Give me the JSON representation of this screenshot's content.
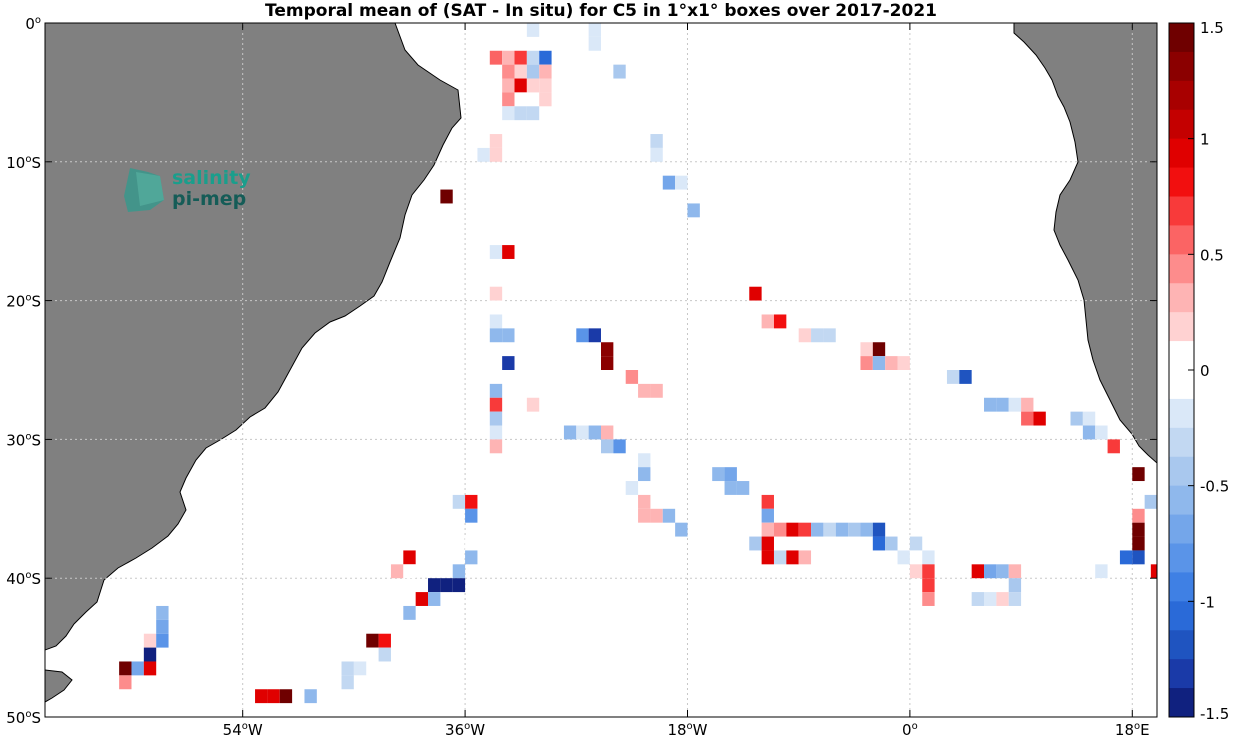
{
  "title": "Temporal mean of (SAT - In situ) for C5 in 1°x1° boxes over 2017-2021",
  "logo": {
    "line1": "salinity",
    "line2": "pi-mep"
  },
  "colors": {
    "land": "#808080",
    "ocean": "#ffffff",
    "grid": "#c8c8c8"
  },
  "map": {
    "lon_range": [
      -70,
      20
    ],
    "lat_range": [
      -50,
      0
    ],
    "x_ticks": [
      {
        "lon": -54,
        "text": "54°W",
        "main": "54",
        "sup": "o",
        "tail": "W"
      },
      {
        "lon": -36,
        "text": "36°W",
        "main": "36",
        "sup": "o",
        "tail": "W"
      },
      {
        "lon": -18,
        "text": "18°W",
        "main": "18",
        "sup": "o",
        "tail": "W"
      },
      {
        "lon": 0,
        "text": "0°",
        "main": "0",
        "sup": "o",
        "tail": ""
      },
      {
        "lon": 18,
        "text": "18°E",
        "main": "18",
        "sup": "o",
        "tail": "E"
      }
    ],
    "y_ticks": [
      {
        "lat": 0,
        "text": "0°",
        "main": "0",
        "sup": "o",
        "tail": ""
      },
      {
        "lat": -10,
        "text": "10°S",
        "main": "10",
        "sup": "o",
        "tail": "S"
      },
      {
        "lat": -20,
        "text": "20°S",
        "main": "20",
        "sup": "o",
        "tail": "S"
      },
      {
        "lat": -30,
        "text": "30°S",
        "main": "30",
        "sup": "o",
        "tail": "S"
      },
      {
        "lat": -40,
        "text": "40°S",
        "main": "40",
        "sup": "o",
        "tail": "S"
      },
      {
        "lat": -50,
        "text": "50°S",
        "main": "50",
        "sup": "o",
        "tail": "S"
      }
    ]
  },
  "colorbar": {
    "range": [
      -1.5,
      1.5
    ],
    "ticks": [
      "1.5",
      "1",
      "0.5",
      "0",
      "-0.5",
      "-1",
      "-1.5"
    ],
    "tick_values": [
      1.5,
      1,
      0.5,
      0,
      -0.5,
      -1,
      -1.5
    ],
    "steps": 24,
    "colors": [
      "#6f0000",
      "#8b0000",
      "#a80000",
      "#c40000",
      "#e00000",
      "#f20f0f",
      "#f83a3a",
      "#fb6464",
      "#fd8c8c",
      "#feb4b4",
      "#ffd2d2",
      "#ffffff",
      "#ffffff",
      "#dae8f8",
      "#c2d8f2",
      "#a9c8ee",
      "#8fb8ec",
      "#74a6ea",
      "#5a94e8",
      "#3f80e4",
      "#2a6ad8",
      "#1f54c0",
      "#1a3aa8",
      "#10217f"
    ]
  },
  "chart_data": {
    "type": "heatmap",
    "title": "Temporal mean of (SAT - In situ) for C5 in 1°x1° boxes over 2017-2021",
    "x_label": "longitude",
    "y_label": "latitude",
    "value_range": [
      -1.5,
      1.5
    ],
    "cells": [
      {
        "lon": -30.5,
        "lat": -0.5,
        "v": -0.2
      },
      {
        "lon": -29.5,
        "lat": -1.5,
        "v": -0.1
      },
      {
        "lon": -25.5,
        "lat": -0.5,
        "v": -0.2
      },
      {
        "lon": -25.5,
        "lat": -1.5,
        "v": -0.2
      },
      {
        "lon": -33.5,
        "lat": -2.5,
        "v": 0.6
      },
      {
        "lon": -32.5,
        "lat": -2.5,
        "v": 0.3
      },
      {
        "lon": -31.5,
        "lat": -2.5,
        "v": 0.7
      },
      {
        "lon": -30.5,
        "lat": -2.5,
        "v": -0.3
      },
      {
        "lon": -29.5,
        "lat": -2.5,
        "v": -1.0
      },
      {
        "lon": -32.5,
        "lat": -3.5,
        "v": 0.5
      },
      {
        "lon": -31.5,
        "lat": -3.5,
        "v": 0.2
      },
      {
        "lon": -30.5,
        "lat": -3.5,
        "v": -0.4
      },
      {
        "lon": -29.5,
        "lat": -3.5,
        "v": 0.3
      },
      {
        "lon": -23.5,
        "lat": -3.5,
        "v": -0.4
      },
      {
        "lon": -32.5,
        "lat": -4.5,
        "v": 0.3
      },
      {
        "lon": -31.5,
        "lat": -4.5,
        "v": 1.0
      },
      {
        "lon": -30.5,
        "lat": -4.5,
        "v": 0.2
      },
      {
        "lon": -29.5,
        "lat": -4.5,
        "v": 0.15
      },
      {
        "lon": -32.5,
        "lat": -5.5,
        "v": 0.5
      },
      {
        "lon": -31.5,
        "lat": -5.5,
        "v": 0.1
      },
      {
        "lon": -29.5,
        "lat": -5.5,
        "v": 0.15
      },
      {
        "lon": -32.5,
        "lat": -6.5,
        "v": -0.2
      },
      {
        "lon": -31.5,
        "lat": -6.5,
        "v": -0.3
      },
      {
        "lon": -30.5,
        "lat": -6.5,
        "v": -0.3
      },
      {
        "lon": -33.5,
        "lat": -8.5,
        "v": 0.15
      },
      {
        "lon": -30.5,
        "lat": -8.5,
        "v": -0.1
      },
      {
        "lon": -20.5,
        "lat": -8.5,
        "v": -0.3
      },
      {
        "lon": -34.5,
        "lat": -9.5,
        "v": -0.2
      },
      {
        "lon": -33.5,
        "lat": -9.5,
        "v": 0.2
      },
      {
        "lon": -20.5,
        "lat": -9.5,
        "v": -0.2
      },
      {
        "lon": -30.5,
        "lat": -10.5,
        "v": 0.1
      },
      {
        "lon": -19.5,
        "lat": -11.5,
        "v": -0.7
      },
      {
        "lon": -18.5,
        "lat": -11.5,
        "v": -0.2
      },
      {
        "lon": -37.5,
        "lat": -12.5,
        "v": 1.5
      },
      {
        "lon": -17.5,
        "lat": -13.5,
        "v": -0.5
      },
      {
        "lon": -30.5,
        "lat": -14.5,
        "v": -0.1
      },
      {
        "lon": -33.5,
        "lat": -16.5,
        "v": -0.2
      },
      {
        "lon": -32.5,
        "lat": -16.5,
        "v": 1.0
      },
      {
        "lon": -30.5,
        "lat": -16.5,
        "v": -0.1
      },
      {
        "lon": -33.5,
        "lat": -17.5,
        "v": 0.1
      },
      {
        "lon": -33.5,
        "lat": -18.5,
        "v": 0.1
      },
      {
        "lon": -29.5,
        "lat": -18.5,
        "v": 0.1
      },
      {
        "lon": -33.5,
        "lat": -19.5,
        "v": 0.2
      },
      {
        "lon": -12.5,
        "lat": -19.5,
        "v": 1.0
      },
      {
        "lon": -33.5,
        "lat": -20.5,
        "v": -0.1
      },
      {
        "lon": -28.5,
        "lat": -20.5,
        "v": -0.1
      },
      {
        "lon": -12.5,
        "lat": -20.5,
        "v": -0.1
      },
      {
        "lon": -33.5,
        "lat": -21.5,
        "v": -0.2
      },
      {
        "lon": -11.5,
        "lat": -21.5,
        "v": 0.3
      },
      {
        "lon": -10.5,
        "lat": -21.5,
        "v": 0.8
      },
      {
        "lon": -33.5,
        "lat": -22.5,
        "v": -0.5
      },
      {
        "lon": -32.5,
        "lat": -22.5,
        "v": -0.5
      },
      {
        "lon": -26.5,
        "lat": -22.5,
        "v": -0.8
      },
      {
        "lon": -25.5,
        "lat": -22.5,
        "v": -1.3
      },
      {
        "lon": -8.5,
        "lat": -22.5,
        "v": 0.2
      },
      {
        "lon": -7.5,
        "lat": -22.5,
        "v": -0.3
      },
      {
        "lon": -6.5,
        "lat": -22.5,
        "v": -0.3
      },
      {
        "lon": -24.5,
        "lat": -23.5,
        "v": 1.3
      },
      {
        "lon": -3.5,
        "lat": -23.5,
        "v": 0.2
      },
      {
        "lon": -2.5,
        "lat": -23.5,
        "v": 1.5
      },
      {
        "lon": -32.5,
        "lat": -24.5,
        "v": -1.3
      },
      {
        "lon": -24.5,
        "lat": -24.5,
        "v": 1.3
      },
      {
        "lon": -3.5,
        "lat": -24.5,
        "v": 0.4
      },
      {
        "lon": -2.5,
        "lat": -24.5,
        "v": -0.6
      },
      {
        "lon": -1.5,
        "lat": -24.5,
        "v": 0.3
      },
      {
        "lon": -0.5,
        "lat": -24.5,
        "v": 0.2
      },
      {
        "lon": -22.5,
        "lat": -25.5,
        "v": 0.5
      },
      {
        "lon": 3.5,
        "lat": -25.5,
        "v": -0.3
      },
      {
        "lon": 4.5,
        "lat": -25.5,
        "v": -1.2
      },
      {
        "lon": -33.5,
        "lat": -26.5,
        "v": -0.5
      },
      {
        "lon": -21.5,
        "lat": -26.5,
        "v": 0.3
      },
      {
        "lon": -20.5,
        "lat": -26.5,
        "v": 0.3
      },
      {
        "lon": -33.5,
        "lat": -27.5,
        "v": 0.7
      },
      {
        "lon": -30.5,
        "lat": -27.5,
        "v": 0.2
      },
      {
        "lon": 6.5,
        "lat": -27.5,
        "v": -0.6
      },
      {
        "lon": 7.5,
        "lat": -27.5,
        "v": -0.5
      },
      {
        "lon": 8.5,
        "lat": -27.5,
        "v": -0.2
      },
      {
        "lon": 9.5,
        "lat": -27.5,
        "v": 0.3
      },
      {
        "lon": -33.5,
        "lat": -28.5,
        "v": -0.4
      },
      {
        "lon": -21.5,
        "lat": -28.5,
        "v": -0.1
      },
      {
        "lon": 9.5,
        "lat": -28.5,
        "v": 0.6
      },
      {
        "lon": 10.5,
        "lat": -28.5,
        "v": 0.9
      },
      {
        "lon": 13.5,
        "lat": -28.5,
        "v": -0.4
      },
      {
        "lon": 14.5,
        "lat": -28.5,
        "v": -0.2
      },
      {
        "lon": -33.5,
        "lat": -29.5,
        "v": -0.2
      },
      {
        "lon": -27.5,
        "lat": -29.5,
        "v": -0.6
      },
      {
        "lon": -26.5,
        "lat": -29.5,
        "v": -0.2
      },
      {
        "lon": -25.5,
        "lat": -29.5,
        "v": -0.6
      },
      {
        "lon": -24.5,
        "lat": -29.5,
        "v": 0.3
      },
      {
        "lon": 14.5,
        "lat": -29.5,
        "v": -0.6
      },
      {
        "lon": 15.5,
        "lat": -29.5,
        "v": -0.2
      },
      {
        "lon": -33.5,
        "lat": -30.5,
        "v": 0.3
      },
      {
        "lon": -24.5,
        "lat": -30.5,
        "v": -0.4
      },
      {
        "lon": -23.5,
        "lat": -30.5,
        "v": -0.8
      },
      {
        "lon": 16.5,
        "lat": -30.5,
        "v": 0.7
      },
      {
        "lon": -21.5,
        "lat": -31.5,
        "v": -0.2
      },
      {
        "lon": -21.5,
        "lat": -32.5,
        "v": -0.5
      },
      {
        "lon": -15.5,
        "lat": -32.5,
        "v": -0.5
      },
      {
        "lon": -14.5,
        "lat": -32.5,
        "v": -0.7
      },
      {
        "lon": 18.5,
        "lat": -32.5,
        "v": 1.5
      },
      {
        "lon": -22.5,
        "lat": -33.5,
        "v": -0.2
      },
      {
        "lon": -14.5,
        "lat": -33.5,
        "v": -0.6
      },
      {
        "lon": -13.5,
        "lat": -33.5,
        "v": -0.6
      },
      {
        "lon": -36.5,
        "lat": -34.5,
        "v": -0.3
      },
      {
        "lon": -35.5,
        "lat": -34.5,
        "v": 0.8
      },
      {
        "lon": -21.5,
        "lat": -34.5,
        "v": 0.3
      },
      {
        "lon": -11.5,
        "lat": -34.5,
        "v": 0.7
      },
      {
        "lon": 19.5,
        "lat": -34.5,
        "v": -0.4
      },
      {
        "lon": -35.5,
        "lat": -35.5,
        "v": -0.8
      },
      {
        "lon": -21.5,
        "lat": -35.5,
        "v": 0.3
      },
      {
        "lon": -20.5,
        "lat": -35.5,
        "v": 0.3
      },
      {
        "lon": -19.5,
        "lat": -35.5,
        "v": -0.6
      },
      {
        "lon": -11.5,
        "lat": -35.5,
        "v": -0.7
      },
      {
        "lon": 18.5,
        "lat": -35.5,
        "v": 0.5
      },
      {
        "lon": -18.5,
        "lat": -36.5,
        "v": -0.5
      },
      {
        "lon": -11.5,
        "lat": -36.5,
        "v": 0.3
      },
      {
        "lon": -10.5,
        "lat": -36.5,
        "v": 0.5
      },
      {
        "lon": -9.5,
        "lat": -36.5,
        "v": 1.0
      },
      {
        "lon": -8.5,
        "lat": -36.5,
        "v": 0.7
      },
      {
        "lon": -7.5,
        "lat": -36.5,
        "v": -0.6
      },
      {
        "lon": -6.5,
        "lat": -36.5,
        "v": -0.3
      },
      {
        "lon": -5.5,
        "lat": -36.5,
        "v": -0.5
      },
      {
        "lon": -4.5,
        "lat": -36.5,
        "v": -0.4
      },
      {
        "lon": -3.5,
        "lat": -36.5,
        "v": -0.5
      },
      {
        "lon": -2.5,
        "lat": -36.5,
        "v": -1.2
      },
      {
        "lon": 18.5,
        "lat": -36.5,
        "v": 1.5
      },
      {
        "lon": -35.5,
        "lat": -37.5,
        "v": -0.1
      },
      {
        "lon": -12.5,
        "lat": -37.5,
        "v": -0.4
      },
      {
        "lon": -11.5,
        "lat": -37.5,
        "v": 1.0
      },
      {
        "lon": -2.5,
        "lat": -37.5,
        "v": -1.0
      },
      {
        "lon": -1.5,
        "lat": -37.5,
        "v": -0.4
      },
      {
        "lon": 0.5,
        "lat": -37.5,
        "v": -0.3
      },
      {
        "lon": 18.5,
        "lat": -37.5,
        "v": 1.5
      },
      {
        "lon": -40.5,
        "lat": -38.5,
        "v": 1.0
      },
      {
        "lon": -35.5,
        "lat": -38.5,
        "v": -0.5
      },
      {
        "lon": -11.5,
        "lat": -38.5,
        "v": 1.0
      },
      {
        "lon": -10.5,
        "lat": -38.5,
        "v": -0.3
      },
      {
        "lon": -9.5,
        "lat": -38.5,
        "v": 1.0
      },
      {
        "lon": -8.5,
        "lat": -38.5,
        "v": 0.3
      },
      {
        "lon": -0.5,
        "lat": -38.5,
        "v": -0.2
      },
      {
        "lon": 0.5,
        "lat": -38.5,
        "v": -0.1
      },
      {
        "lon": 1.5,
        "lat": -38.5,
        "v": -0.2
      },
      {
        "lon": 17.5,
        "lat": -38.5,
        "v": -1.0
      },
      {
        "lon": 18.5,
        "lat": -38.5,
        "v": -1.2
      },
      {
        "lon": -41.5,
        "lat": -39.5,
        "v": 0.3
      },
      {
        "lon": -40.5,
        "lat": -39.5,
        "v": 0.1
      },
      {
        "lon": -36.5,
        "lat": -39.5,
        "v": -0.5
      },
      {
        "lon": 0.5,
        "lat": -39.5,
        "v": 0.2
      },
      {
        "lon": 1.5,
        "lat": -39.5,
        "v": 0.7
      },
      {
        "lon": 5.5,
        "lat": -39.5,
        "v": 0.9
      },
      {
        "lon": 6.5,
        "lat": -39.5,
        "v": -0.7
      },
      {
        "lon": 7.5,
        "lat": -39.5,
        "v": -0.6
      },
      {
        "lon": 8.5,
        "lat": -39.5,
        "v": 0.3
      },
      {
        "lon": 15.5,
        "lat": -39.5,
        "v": -0.2
      },
      {
        "lon": 20.0,
        "lat": -39.5,
        "v": 0.9
      },
      {
        "lon": -38.5,
        "lat": -40.5,
        "v": -1.5
      },
      {
        "lon": -37.5,
        "lat": -40.5,
        "v": -1.5
      },
      {
        "lon": -36.5,
        "lat": -40.5,
        "v": -1.5
      },
      {
        "lon": 1.5,
        "lat": -40.5,
        "v": 0.7
      },
      {
        "lon": 8.5,
        "lat": -40.5,
        "v": -0.4
      },
      {
        "lon": 15.5,
        "lat": -40.5,
        "v": -0.1
      },
      {
        "lon": -39.5,
        "lat": -41.5,
        "v": 0.9
      },
      {
        "lon": -38.5,
        "lat": -41.5,
        "v": -0.6
      },
      {
        "lon": 1.5,
        "lat": -41.5,
        "v": 0.4
      },
      {
        "lon": 4.5,
        "lat": -41.5,
        "v": -0.1
      },
      {
        "lon": 5.5,
        "lat": -41.5,
        "v": -0.3
      },
      {
        "lon": 6.5,
        "lat": -41.5,
        "v": -0.2
      },
      {
        "lon": 7.5,
        "lat": -41.5,
        "v": 0.2
      },
      {
        "lon": 8.5,
        "lat": -41.5,
        "v": -0.3
      },
      {
        "lon": -40.5,
        "lat": -42.5,
        "v": -0.5
      },
      {
        "lon": -60.5,
        "lat": -42.5,
        "v": -0.5
      },
      {
        "lon": -60.5,
        "lat": -43.5,
        "v": -0.7
      },
      {
        "lon": -61.5,
        "lat": -44.5,
        "v": 0.2
      },
      {
        "lon": -60.5,
        "lat": -44.5,
        "v": -0.8
      },
      {
        "lon": -43.5,
        "lat": -44.5,
        "v": 1.5
      },
      {
        "lon": -42.5,
        "lat": -44.5,
        "v": 0.8
      },
      {
        "lon": -43.5,
        "lat": -45.5,
        "v": -0.1
      },
      {
        "lon": -42.5,
        "lat": -45.5,
        "v": -0.3
      },
      {
        "lon": -61.5,
        "lat": -45.5,
        "v": -1.5
      },
      {
        "lon": -63.5,
        "lat": -46.5,
        "v": 1.5
      },
      {
        "lon": -62.5,
        "lat": -46.5,
        "v": -0.7
      },
      {
        "lon": -61.5,
        "lat": -46.5,
        "v": 1.0
      },
      {
        "lon": -45.5,
        "lat": -46.5,
        "v": -0.3
      },
      {
        "lon": -44.5,
        "lat": -46.5,
        "v": -0.2
      },
      {
        "lon": -63.5,
        "lat": -47.5,
        "v": 0.4
      },
      {
        "lon": -45.5,
        "lat": -47.5,
        "v": -0.3
      },
      {
        "lon": -44.5,
        "lat": -47.5,
        "v": -0.1
      },
      {
        "lon": -52.5,
        "lat": -48.5,
        "v": 1.0
      },
      {
        "lon": -51.5,
        "lat": -48.5,
        "v": 1.0
      },
      {
        "lon": -50.5,
        "lat": -48.5,
        "v": 1.5
      },
      {
        "lon": -48.5,
        "lat": -48.5,
        "v": -0.5
      }
    ]
  }
}
